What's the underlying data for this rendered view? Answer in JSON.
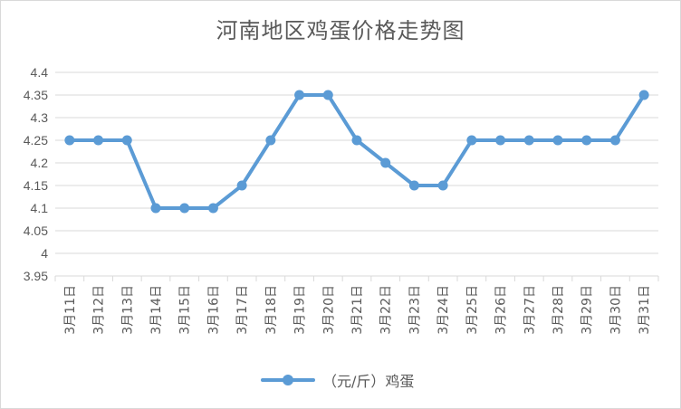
{
  "chart_data": {
    "type": "line",
    "title": "河南地区鸡蛋价格走势图",
    "categories": [
      "3月11日",
      "3月12日",
      "3月13日",
      "3月14日",
      "3月15日",
      "3月16日",
      "3月17日",
      "3月18日",
      "3月19日",
      "3月20日",
      "3月21日",
      "3月22日",
      "3月23日",
      "3月24日",
      "3月25日",
      "3月26日",
      "3月27日",
      "3月28日",
      "3月29日",
      "3月30日",
      "3月31日"
    ],
    "series": [
      {
        "name": "（元/斤）鸡蛋",
        "values": [
          4.25,
          4.25,
          4.25,
          4.1,
          4.1,
          4.1,
          4.15,
          4.25,
          4.35,
          4.35,
          4.25,
          4.2,
          4.15,
          4.15,
          4.25,
          4.25,
          4.25,
          4.25,
          4.25,
          4.25,
          4.35
        ]
      }
    ],
    "y_ticks": [
      "3.95",
      "4",
      "4.05",
      "4.1",
      "4.15",
      "4.2",
      "4.25",
      "4.3",
      "4.35",
      "4.4"
    ],
    "ylim": [
      3.95,
      4.4
    ],
    "grid": true,
    "legend_position": "bottom",
    "colors": {
      "series": "#5b9bd5",
      "grid": "#d9d9d9",
      "text": "#595959"
    }
  }
}
